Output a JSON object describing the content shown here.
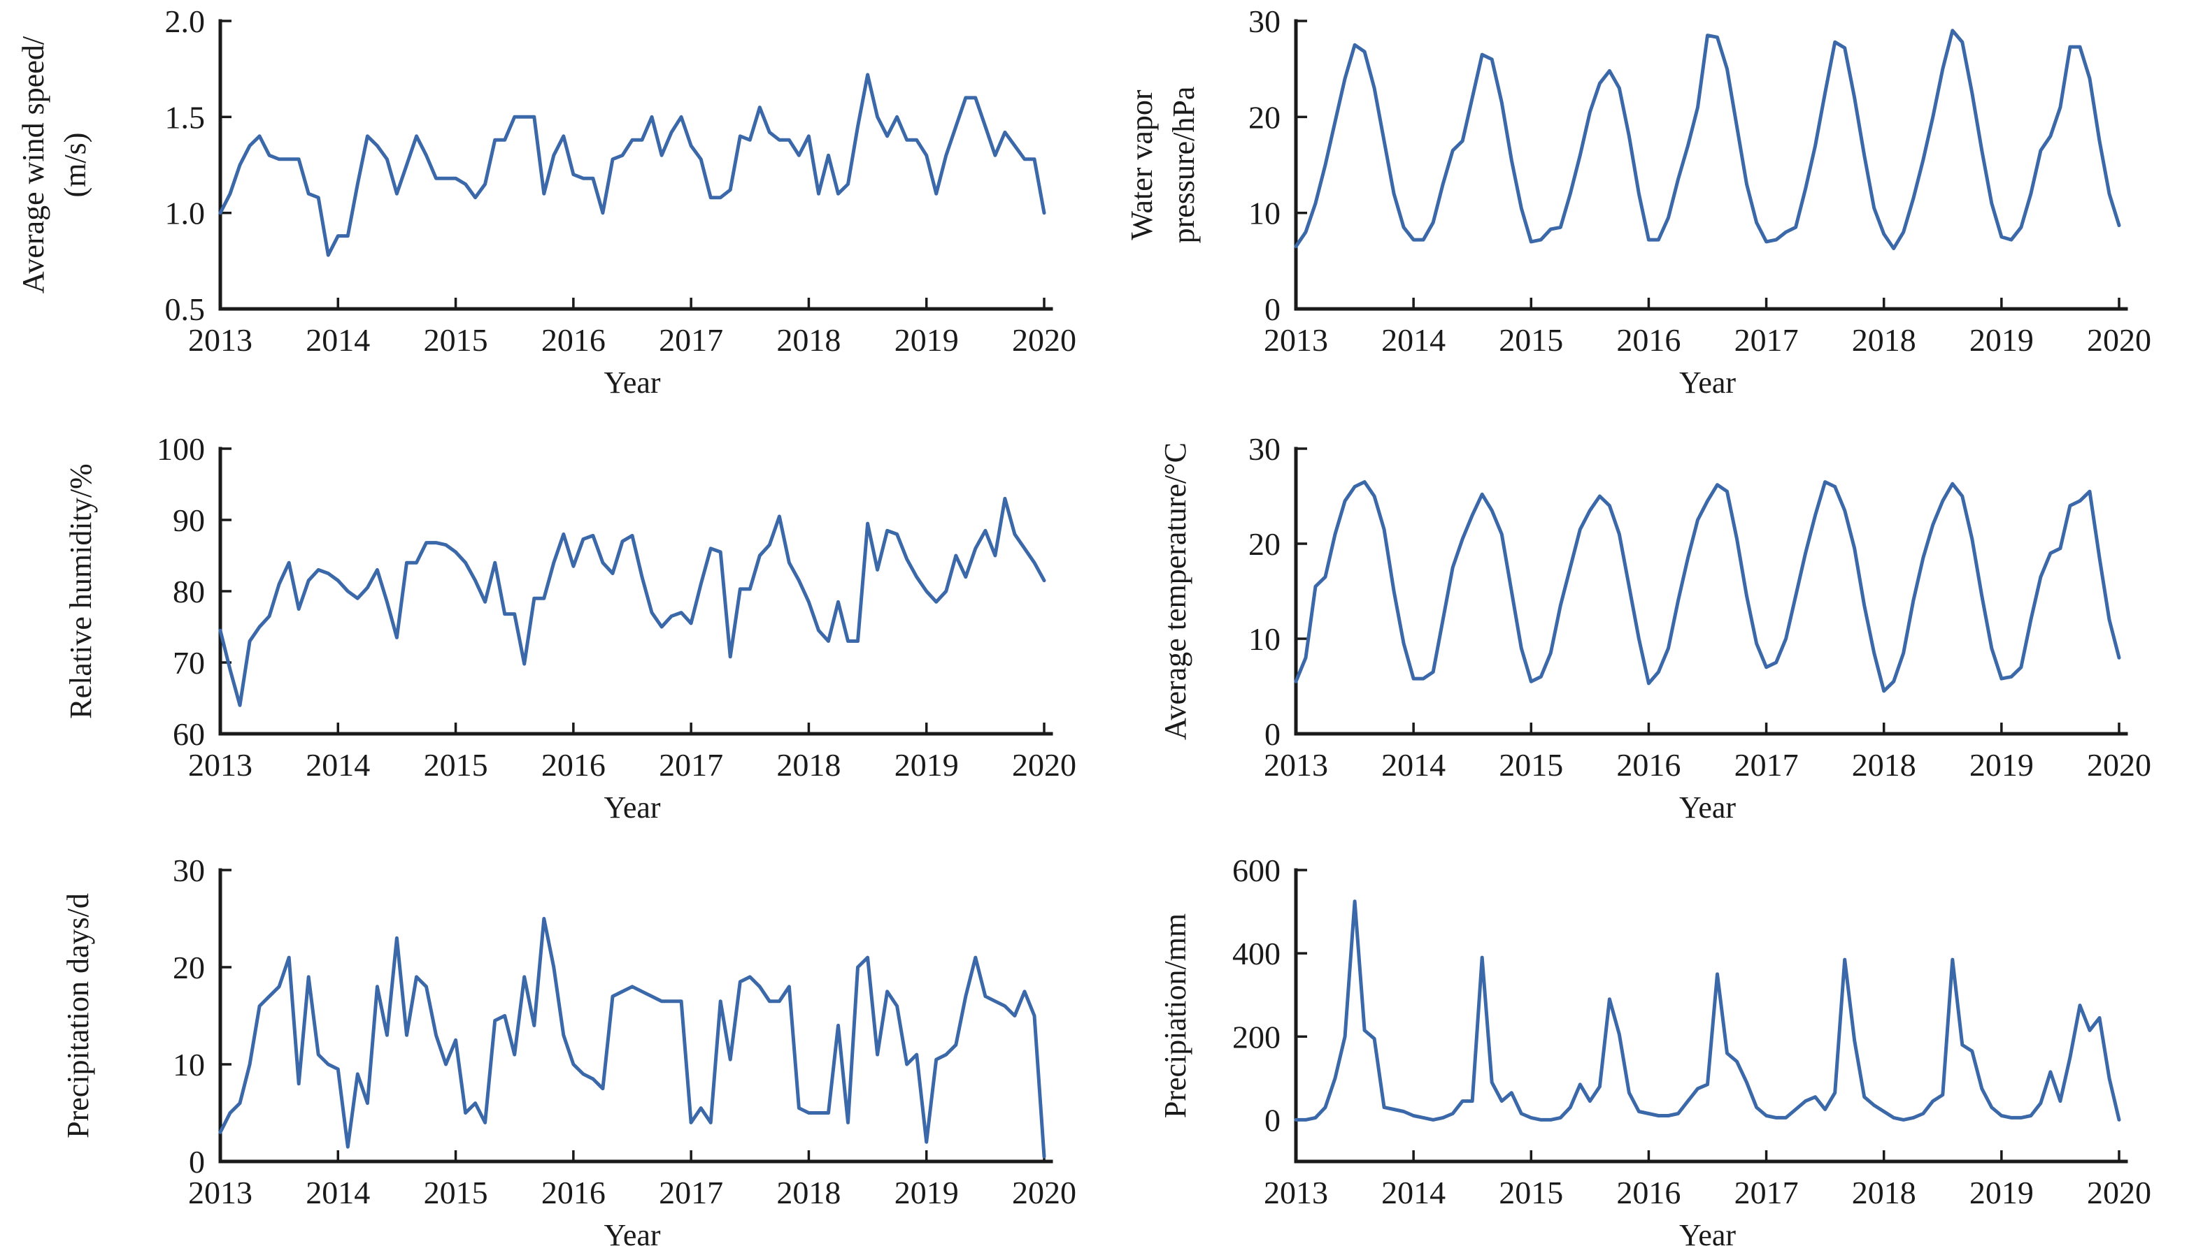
{
  "figure": {
    "xlabel": "Year",
    "x_tick_labels": [
      "2013",
      "2014",
      "2015",
      "2016",
      "2017",
      "2018",
      "2019",
      "2020"
    ],
    "line_color": "#3a68a8",
    "axis_color": "#1a1a1a",
    "background": "#ffffff",
    "x_range": [
      2013,
      2020
    ],
    "sampling": "monthly"
  },
  "chart_data": [
    {
      "type": "line",
      "panel": "top-left",
      "ylabel_lines": [
        "Average wind speed/",
        "(m/s)"
      ],
      "xlabel": "Year",
      "ylim": [
        0.5,
        2.0
      ],
      "yticks": [
        0.5,
        1.0,
        1.5,
        2.0
      ],
      "ytick_labels": [
        "0.5",
        "1.0",
        "1.5",
        "2.0"
      ],
      "xlim": [
        2013,
        2020
      ],
      "grid": false,
      "values": [
        1.0,
        1.1,
        1.25,
        1.35,
        1.4,
        1.3,
        1.28,
        1.28,
        1.28,
        1.1,
        1.08,
        0.78,
        0.88,
        0.88,
        1.15,
        1.4,
        1.35,
        1.28,
        1.1,
        1.25,
        1.4,
        1.3,
        1.18,
        1.18,
        1.18,
        1.15,
        1.08,
        1.15,
        1.38,
        1.38,
        1.5,
        1.5,
        1.5,
        1.1,
        1.3,
        1.4,
        1.2,
        1.18,
        1.18,
        1.0,
        1.28,
        1.3,
        1.38,
        1.38,
        1.5,
        1.3,
        1.42,
        1.5,
        1.35,
        1.28,
        1.08,
        1.08,
        1.12,
        1.4,
        1.38,
        1.55,
        1.42,
        1.38,
        1.38,
        1.3,
        1.4,
        1.1,
        1.3,
        1.1,
        1.15,
        1.45,
        1.72,
        1.5,
        1.4,
        1.5,
        1.38,
        1.38,
        1.3,
        1.1,
        1.3,
        1.45,
        1.6,
        1.6,
        1.45,
        1.3,
        1.42,
        1.35,
        1.28,
        1.28,
        1.0
      ]
    },
    {
      "type": "line",
      "panel": "top-right",
      "ylabel_lines": [
        "Water vapor",
        "pressure/hPa"
      ],
      "xlabel": "Year",
      "ylim": [
        0,
        30
      ],
      "yticks": [
        0,
        10,
        20,
        30
      ],
      "ytick_labels": [
        "0",
        "10",
        "20",
        "30"
      ],
      "xlim": [
        2013,
        2020
      ],
      "grid": false,
      "values": [
        6.5,
        8.0,
        11.0,
        15.0,
        19.5,
        24.0,
        27.5,
        26.8,
        23.0,
        17.5,
        12.0,
        8.5,
        7.2,
        7.2,
        9.0,
        13.0,
        16.5,
        17.5,
        22.0,
        26.5,
        26.0,
        21.5,
        15.5,
        10.5,
        7.0,
        7.2,
        8.3,
        8.5,
        12.0,
        16.0,
        20.5,
        23.5,
        24.8,
        23.0,
        18.0,
        12.0,
        7.2,
        7.2,
        9.5,
        13.5,
        17.0,
        21.0,
        28.5,
        28.3,
        25.0,
        19.0,
        13.0,
        9.0,
        7.0,
        7.2,
        8.0,
        8.5,
        12.5,
        17.0,
        22.5,
        27.8,
        27.2,
        22.0,
        16.0,
        10.5,
        7.8,
        6.3,
        8.0,
        11.5,
        15.5,
        20.0,
        25.0,
        29.0,
        27.8,
        22.5,
        16.5,
        11.0,
        7.5,
        7.2,
        8.5,
        12.0,
        16.5,
        18.0,
        21.0,
        27.3,
        27.3,
        24.0,
        17.5,
        12.0,
        8.7
      ]
    },
    {
      "type": "line",
      "panel": "middle-left",
      "ylabel_lines": [
        "Relative humidity/%"
      ],
      "xlabel": "Year",
      "ylim": [
        60,
        100
      ],
      "yticks": [
        60,
        70,
        80,
        90,
        100
      ],
      "ytick_labels": [
        "60",
        "70",
        "80",
        "90",
        "100"
      ],
      "xlim": [
        2013,
        2020
      ],
      "grid": false,
      "values": [
        74.5,
        69,
        64,
        73,
        75,
        76.5,
        81,
        84,
        77.5,
        81.5,
        83,
        82.5,
        81.5,
        80,
        79,
        80.5,
        83,
        78.5,
        73.5,
        84,
        84,
        86.8,
        86.8,
        86.5,
        85.5,
        84,
        81.5,
        78.5,
        84,
        76.8,
        76.8,
        69.8,
        79,
        79,
        84,
        88,
        83.5,
        87.3,
        87.8,
        84,
        82.5,
        87,
        87.8,
        82,
        77,
        75,
        76.5,
        77,
        75.5,
        81,
        86,
        85.5,
        70.8,
        80.3,
        80.3,
        85,
        86.5,
        90.5,
        84,
        81.5,
        78.5,
        74.5,
        73,
        78.5,
        73,
        73,
        89.5,
        83,
        88.5,
        88,
        84.5,
        82,
        80,
        78.5,
        80,
        85,
        82,
        86,
        88.5,
        85,
        93,
        88,
        86,
        84,
        81.5
      ]
    },
    {
      "type": "line",
      "panel": "middle-right",
      "ylabel_lines": [
        "Average temperature/°C"
      ],
      "xlabel": "Year",
      "ylim": [
        0,
        30
      ],
      "yticks": [
        0,
        10,
        20,
        30
      ],
      "ytick_labels": [
        "0",
        "10",
        "20",
        "30"
      ],
      "xlim": [
        2013,
        2020
      ],
      "grid": false,
      "values": [
        5.5,
        8,
        15.5,
        16.5,
        21,
        24.5,
        26,
        26.5,
        25,
        21.5,
        15,
        9.5,
        5.8,
        5.8,
        6.5,
        12,
        17.5,
        20.5,
        23,
        25.2,
        23.5,
        21,
        15,
        9,
        5.5,
        6,
        8.5,
        13.5,
        17.5,
        21.5,
        23.5,
        25,
        24,
        21,
        15.5,
        10,
        5.3,
        6.5,
        9,
        14,
        18.5,
        22.5,
        24.5,
        26.2,
        25.5,
        20.5,
        14.5,
        9.5,
        7,
        7.5,
        10,
        14.5,
        19,
        23,
        26.5,
        26,
        23.5,
        19.5,
        13.5,
        8.5,
        4.5,
        5.5,
        8.5,
        14,
        18.5,
        22,
        24.5,
        26.3,
        25,
        20.5,
        14.5,
        9,
        5.8,
        6,
        7,
        12,
        16.5,
        19,
        19.5,
        24,
        24.5,
        25.5,
        18.5,
        12,
        8
      ]
    },
    {
      "type": "line",
      "panel": "bottom-left",
      "ylabel_lines": [
        "Precipitation days/d"
      ],
      "xlabel": "Year",
      "ylim": [
        0,
        30
      ],
      "yticks": [
        0,
        10,
        20,
        30
      ],
      "ytick_labels": [
        "0",
        "10",
        "20",
        "30"
      ],
      "xlim": [
        2013,
        2020
      ],
      "grid": false,
      "values": [
        3,
        5,
        6,
        10,
        16,
        17,
        18,
        21,
        8,
        19,
        11,
        10,
        9.5,
        1.5,
        9,
        6,
        18,
        13,
        23,
        13,
        19,
        18,
        13,
        10,
        12.5,
        5,
        6,
        4,
        14.5,
        15,
        11,
        19,
        14,
        25,
        20,
        13,
        10,
        9,
        8.5,
        7.5,
        17,
        17.5,
        18,
        17.5,
        17,
        16.5,
        16.5,
        16.5,
        4,
        5.5,
        4,
        16.5,
        10.5,
        18.5,
        19,
        18,
        16.5,
        16.5,
        18,
        5.5,
        5,
        5,
        5,
        14,
        4,
        20,
        21,
        11,
        17.5,
        16,
        10,
        11,
        2,
        10.5,
        11,
        12,
        17,
        21,
        17,
        16.5,
        16,
        15,
        17.5,
        15,
        0.5
      ]
    },
    {
      "type": "line",
      "panel": "bottom-right",
      "ylabel_lines": [
        "Precipiation/mm"
      ],
      "xlabel": "Year",
      "ylim": [
        -100,
        600
      ],
      "yticks": [
        0,
        200,
        400,
        600
      ],
      "ytick_labels": [
        "0",
        "200",
        "400",
        "600"
      ],
      "xlim": [
        2013,
        2020
      ],
      "grid": false,
      "values": [
        0,
        0,
        5,
        30,
        100,
        200,
        525,
        215,
        195,
        30,
        25,
        20,
        10,
        5,
        0,
        5,
        15,
        45,
        45,
        390,
        90,
        45,
        65,
        15,
        5,
        0,
        0,
        5,
        30,
        85,
        45,
        80,
        290,
        205,
        65,
        20,
        15,
        10,
        10,
        15,
        45,
        75,
        85,
        350,
        160,
        140,
        90,
        30,
        10,
        5,
        5,
        25,
        45,
        55,
        25,
        65,
        385,
        190,
        55,
        35,
        20,
        5,
        0,
        5,
        15,
        45,
        60,
        385,
        180,
        165,
        75,
        30,
        10,
        5,
        5,
        10,
        40,
        115,
        45,
        150,
        275,
        215,
        245,
        100,
        0
      ]
    }
  ]
}
